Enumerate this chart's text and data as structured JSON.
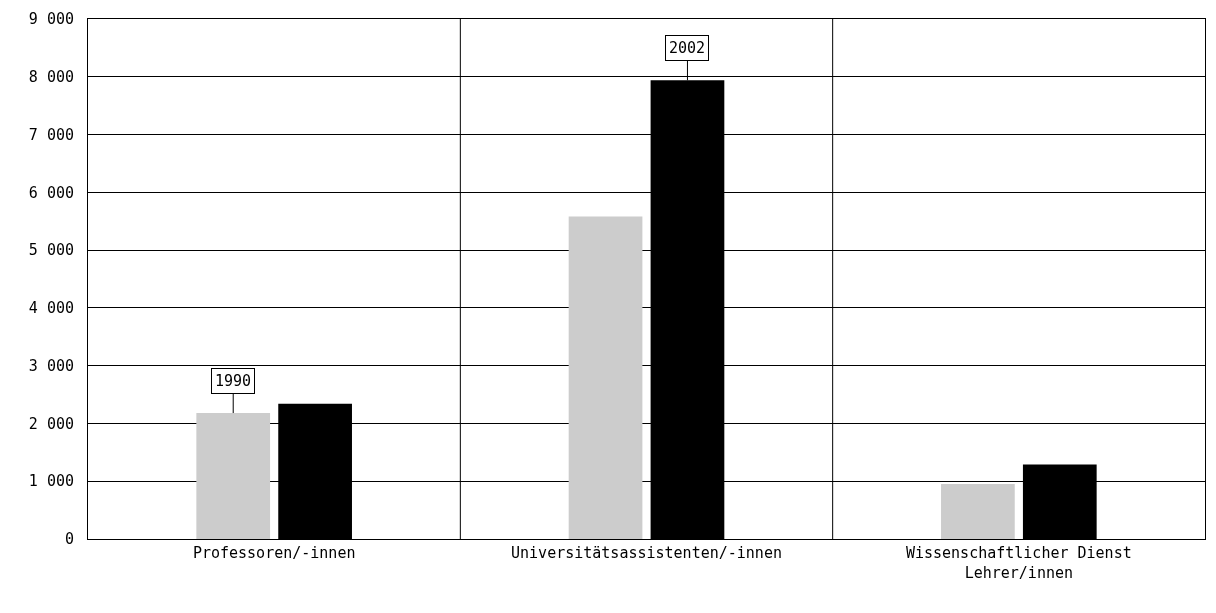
{
  "chart_data": {
    "type": "bar",
    "categories": [
      "Professoren/-innen",
      "Universitätsassistenten/-innen",
      "Wissenschaftlicher Dienst\nLehrer/innen"
    ],
    "series": [
      {
        "color": "#cccccc",
        "values": [
          2180,
          5580,
          950
        ]
      },
      {
        "color": "#000000",
        "values": [
          2340,
          7940,
          1290
        ]
      }
    ],
    "ylim": [
      0,
      9000
    ],
    "yticks": [
      {
        "value": 0,
        "label": "0"
      },
      {
        "value": 1000,
        "label": "1 000"
      },
      {
        "value": 2000,
        "label": "2 000"
      },
      {
        "value": 3000,
        "label": "3 000"
      },
      {
        "value": 4000,
        "label": "4 000"
      },
      {
        "value": 5000,
        "label": "5 000"
      },
      {
        "value": 6000,
        "label": "6 000"
      },
      {
        "value": 7000,
        "label": "7 000"
      },
      {
        "value": 8000,
        "label": "8 000"
      },
      {
        "value": 9000,
        "label": "9 000"
      }
    ],
    "annotations": [
      {
        "text": "1990",
        "x": "Professoren/-innen",
        "y": 2180
      },
      {
        "text": "2002",
        "x": "Universitätsassistenten/-innen",
        "y": 7940
      }
    ],
    "grid": true
  }
}
